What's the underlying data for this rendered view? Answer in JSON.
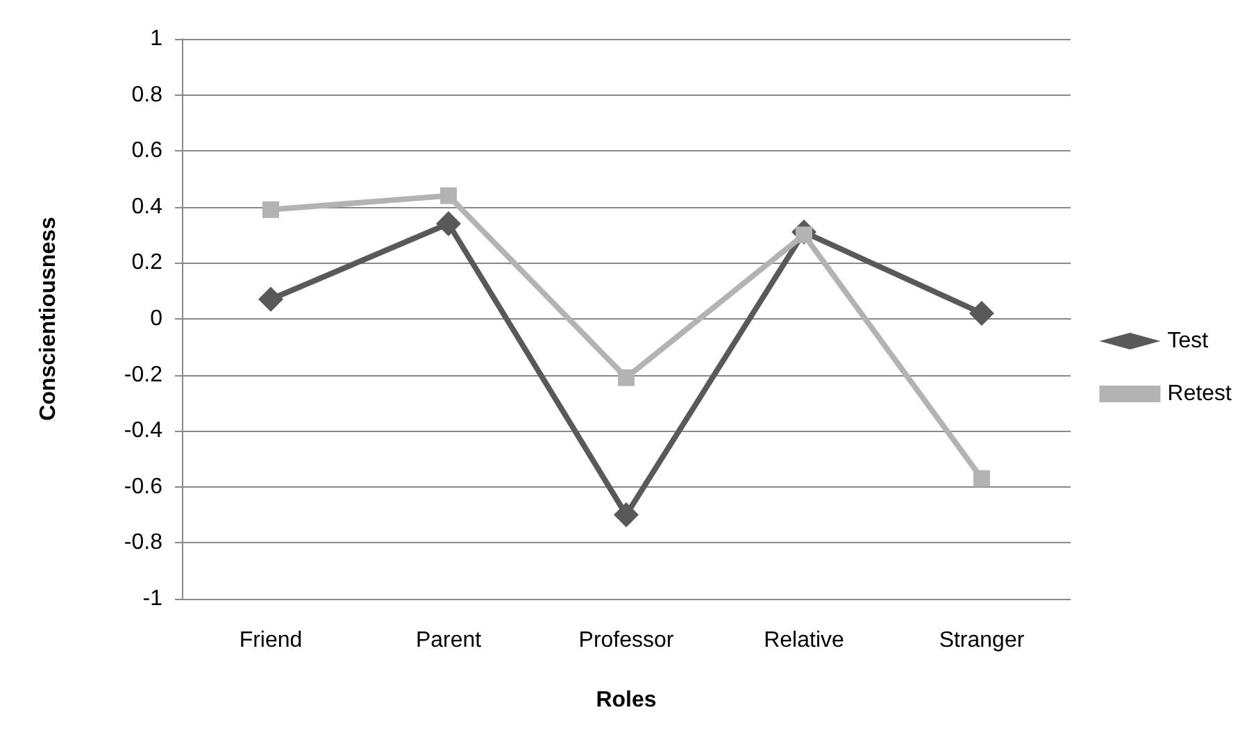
{
  "chart_data": {
    "type": "line",
    "xlabel": "Roles",
    "ylabel": "Conscientiousness",
    "categories": [
      "Friend",
      "Parent",
      "Professor",
      "Relative",
      "Stranger"
    ],
    "series": [
      {
        "name": "Test",
        "color": "#595959",
        "marker": "diamond",
        "values": [
          0.07,
          0.34,
          -0.7,
          0.31,
          0.02
        ]
      },
      {
        "name": "Retest",
        "color": "#b3b3b3",
        "marker": "square",
        "values": [
          0.39,
          0.44,
          -0.21,
          0.3,
          -0.57
        ]
      }
    ],
    "ylim": [
      -1,
      1
    ],
    "yticks": [
      -1,
      -0.8,
      -0.6,
      -0.4,
      -0.2,
      0,
      0.2,
      0.4,
      0.6,
      0.8,
      1
    ],
    "grid": "y",
    "legend": "right",
    "line_style": "solid"
  }
}
